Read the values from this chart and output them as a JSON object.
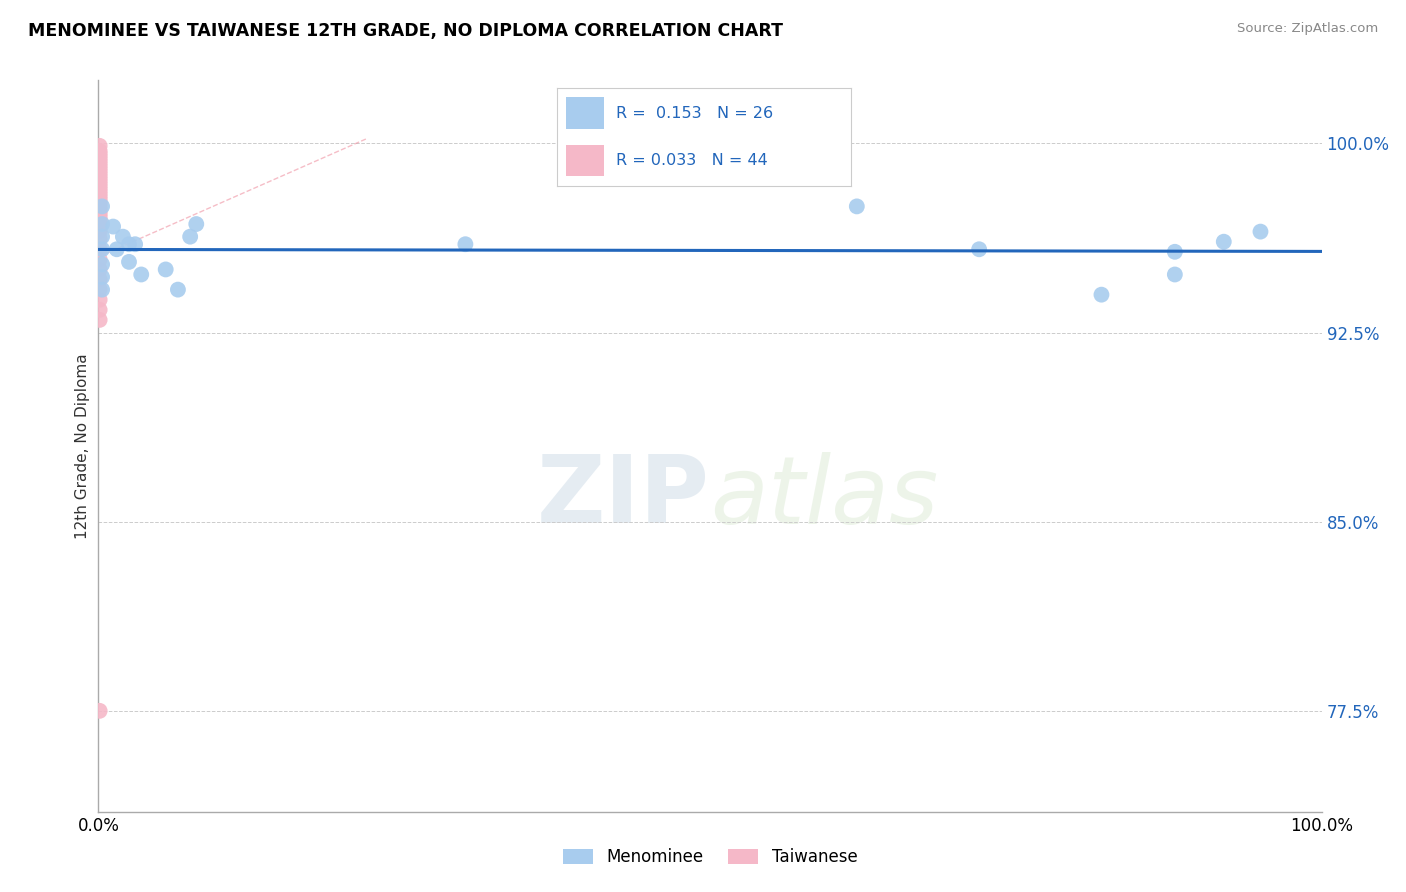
{
  "title": "MENOMINEE VS TAIWANESE 12TH GRADE, NO DIPLOMA CORRELATION CHART",
  "source": "Source: ZipAtlas.com",
  "ylabel": "12th Grade, No Diploma",
  "xlim": [
    0.0,
    1.0
  ],
  "ylim": [
    0.735,
    1.025
  ],
  "blue_color": "#a8ccee",
  "pink_color": "#f5b8c8",
  "line_blue": "#2266bb",
  "line_pink": "#ee8899",
  "yticks": [
    0.775,
    0.85,
    0.925,
    1.0
  ],
  "ytick_labels": [
    "77.5%",
    "85.0%",
    "92.5%",
    "100.0%"
  ],
  "xtick_labels": [
    "0.0%",
    "100.0%"
  ],
  "menominee_x": [
    0.003,
    0.003,
    0.003,
    0.003,
    0.003,
    0.003,
    0.003,
    0.012,
    0.015,
    0.02,
    0.025,
    0.025,
    0.03,
    0.035,
    0.055,
    0.065,
    0.075,
    0.08,
    0.3,
    0.62,
    0.72,
    0.82,
    0.88,
    0.88,
    0.92,
    0.95
  ],
  "menominee_y": [
    0.975,
    0.968,
    0.963,
    0.958,
    0.952,
    0.947,
    0.942,
    0.967,
    0.958,
    0.963,
    0.96,
    0.953,
    0.96,
    0.948,
    0.95,
    0.942,
    0.963,
    0.968,
    0.96,
    0.975,
    0.958,
    0.94,
    0.957,
    0.948,
    0.961,
    0.965
  ],
  "taiwanese_x": [
    0.001,
    0.001,
    0.001,
    0.001,
    0.001,
    0.001,
    0.001,
    0.001,
    0.001,
    0.001,
    0.001,
    0.001,
    0.001,
    0.001,
    0.001,
    0.001,
    0.001,
    0.001,
    0.001,
    0.001,
    0.001,
    0.001,
    0.001,
    0.001,
    0.001,
    0.001,
    0.001,
    0.001,
    0.001,
    0.001,
    0.001,
    0.001,
    0.001,
    0.001,
    0.001,
    0.001,
    0.001,
    0.001,
    0.001,
    0.001,
    0.001,
    0.001,
    0.001,
    0.001
  ],
  "taiwanese_y": [
    0.999,
    0.997,
    0.996,
    0.995,
    0.994,
    0.993,
    0.992,
    0.991,
    0.99,
    0.989,
    0.988,
    0.987,
    0.986,
    0.985,
    0.984,
    0.983,
    0.982,
    0.981,
    0.98,
    0.979,
    0.978,
    0.977,
    0.976,
    0.975,
    0.974,
    0.973,
    0.972,
    0.971,
    0.97,
    0.969,
    0.968,
    0.967,
    0.966,
    0.965,
    0.962,
    0.958,
    0.954,
    0.95,
    0.946,
    0.942,
    0.938,
    0.934,
    0.93,
    0.775
  ],
  "legend_r1": "R =  0.153",
  "legend_n1": "N = 26",
  "legend_r2": "R = 0.033",
  "legend_n2": "N = 44"
}
